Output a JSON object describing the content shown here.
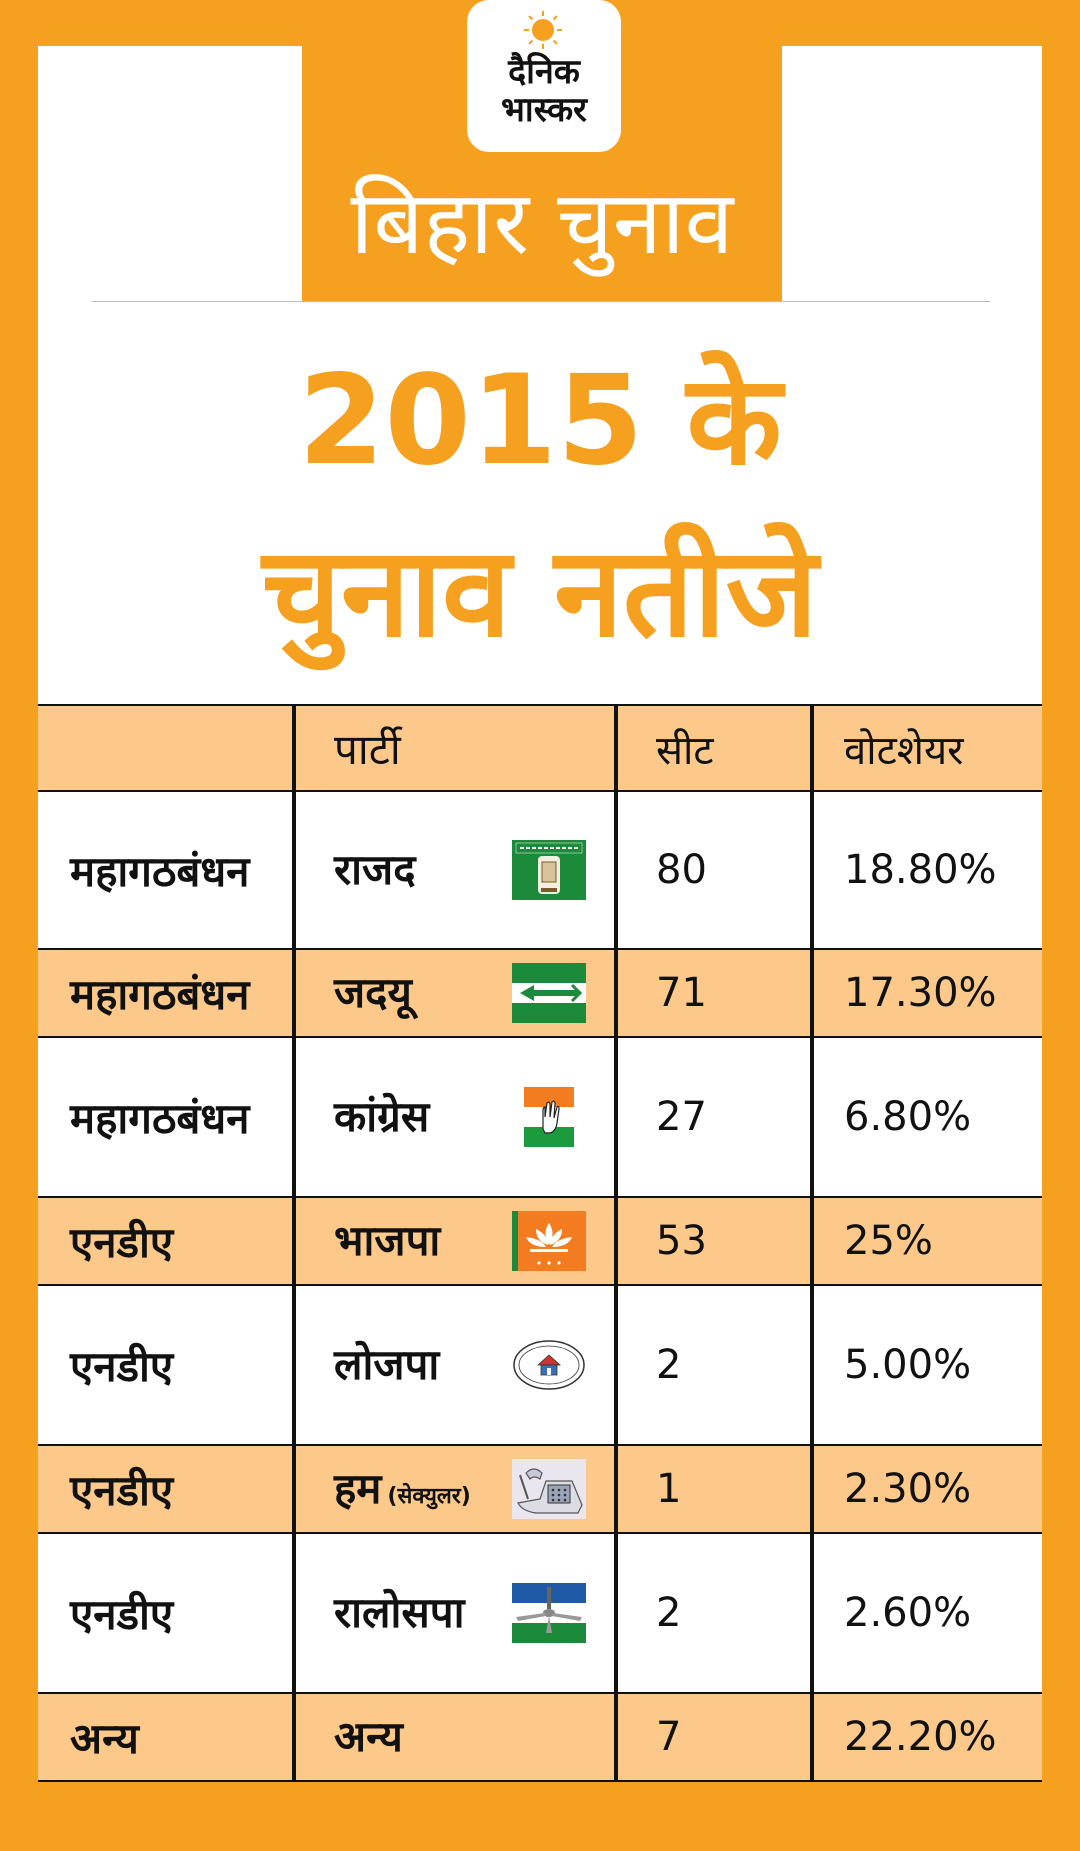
{
  "logo": {
    "line1": "दैनिक",
    "line2": "भास्कर"
  },
  "section_title": "बिहार चुनाव",
  "headline": {
    "line1": "2015 के",
    "line2": "चुनाव नतीजे"
  },
  "table": {
    "headers": {
      "alliance": "",
      "party": "पार्टी",
      "seats": "सीट",
      "vote_share": "वोटशेयर"
    },
    "rows": [
      {
        "alliance": "महागठबंधन",
        "party": "राजद",
        "party_note": "",
        "symbol": "rjd-lantern-icon",
        "seats": "80",
        "vote_share": "18.80%"
      },
      {
        "alliance": "महागठबंधन",
        "party": "जदयू",
        "party_note": "",
        "symbol": "jdu-arrow-icon",
        "seats": "71",
        "vote_share": "17.30%"
      },
      {
        "alliance": "महागठबंधन",
        "party": "कांग्रेस",
        "party_note": "",
        "symbol": "congress-hand-icon",
        "seats": "27",
        "vote_share": "6.80%"
      },
      {
        "alliance": "एनडीए",
        "party": "भाजपा",
        "party_note": "",
        "symbol": "bjp-lotus-icon",
        "seats": "53",
        "vote_share": "25%"
      },
      {
        "alliance": "एनडीए",
        "party": "लोजपा",
        "party_note": "",
        "symbol": "ljp-bungalow-icon",
        "seats": "2",
        "vote_share": "5.00%"
      },
      {
        "alliance": "एनडीए",
        "party": "हम",
        "party_note": "(सेक्युलर)",
        "symbol": "ham-telephone-icon",
        "seats": "1",
        "vote_share": "2.30%"
      },
      {
        "alliance": "एनडीए",
        "party": "रालोसपा",
        "party_note": "",
        "symbol": "rlsp-ceiling-fan-icon",
        "seats": "2",
        "vote_share": "2.60%"
      },
      {
        "alliance": "अन्य",
        "party": "अन्य",
        "party_note": "",
        "symbol": "",
        "seats": "7",
        "vote_share": "22.20%"
      }
    ]
  },
  "colors": {
    "brand_orange": "#f6a020",
    "row_tint": "#fcc98a"
  }
}
